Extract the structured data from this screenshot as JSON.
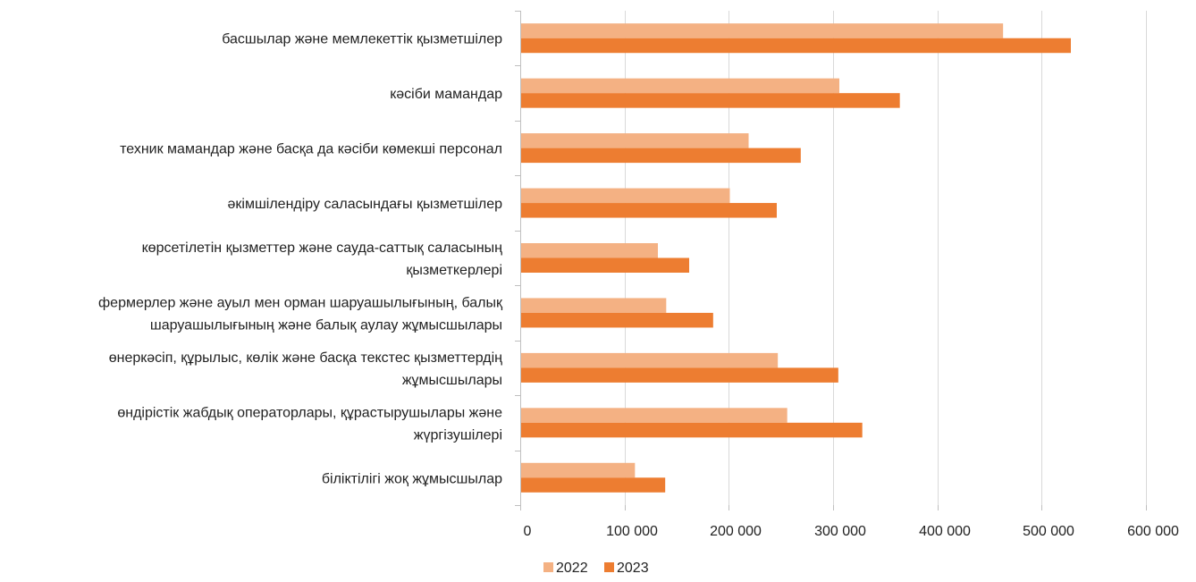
{
  "chart_data": {
    "type": "bar",
    "orientation": "horizontal",
    "categories": [
      [
        "басшылар және мемлекеттік қызметшілер"
      ],
      [
        "кәсіби мамандар"
      ],
      [
        "техник мамандар және басқа да кәсіби көмекші персонал"
      ],
      [
        "әкімшілендіру саласындағы қызметшілер"
      ],
      [
        "көрсетілетін қызметтер және сауда-саттық саласының",
        "қызметкерлері"
      ],
      [
        "фермерлер және ауыл мен орман шаруашылығының, балық",
        "шаруашылығының және балық аулау жұмысшылары"
      ],
      [
        "өнеркәсіп, құрылыс, көлік және басқа текстес қызметтердің",
        "жұмысшылары"
      ],
      [
        "өндірістік жабдық операторлары, құрастырушылары және",
        "жүргізушілері"
      ],
      [
        "біліктілігі жоқ жұмысшылар"
      ]
    ],
    "series": [
      {
        "name": "2022",
        "color": "#F4B183",
        "values": [
          463000,
          306000,
          219000,
          201000,
          132000,
          140000,
          247000,
          256000,
          110000
        ]
      },
      {
        "name": "2023",
        "color": "#ED7D31",
        "values": [
          528000,
          364000,
          269000,
          246000,
          162000,
          185000,
          305000,
          328000,
          139000
        ]
      }
    ],
    "xlim": [
      0,
      600000
    ],
    "ticks": [
      {
        "value": 0,
        "label": "0"
      },
      {
        "value": 100000,
        "label": "100 000"
      },
      {
        "value": 200000,
        "label": "200 000"
      },
      {
        "value": 300000,
        "label": "300 000"
      },
      {
        "value": 400000,
        "label": "400 000"
      },
      {
        "value": 500000,
        "label": "500 000"
      },
      {
        "value": 600000,
        "label": "600 000"
      }
    ],
    "grid": true,
    "legend_position": "bottom-center",
    "title": "",
    "xlabel": "",
    "ylabel": ""
  }
}
